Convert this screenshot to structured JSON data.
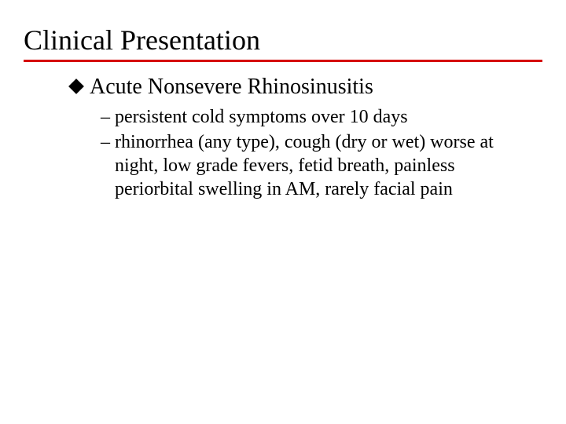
{
  "title": "Clinical Presentation",
  "rule_color": "#d50000",
  "diamond_color": "#000000",
  "dash": "–",
  "bullets": [
    {
      "heading": "Acute Nonsevere Rhinosinusitis",
      "subs": [
        "persistent cold symptoms over 10 days",
        "rhinorrhea (any type), cough (dry or wet) worse at night, low grade fevers, fetid breath, painless periorbital swelling in AM, rarely facial pain"
      ]
    }
  ]
}
